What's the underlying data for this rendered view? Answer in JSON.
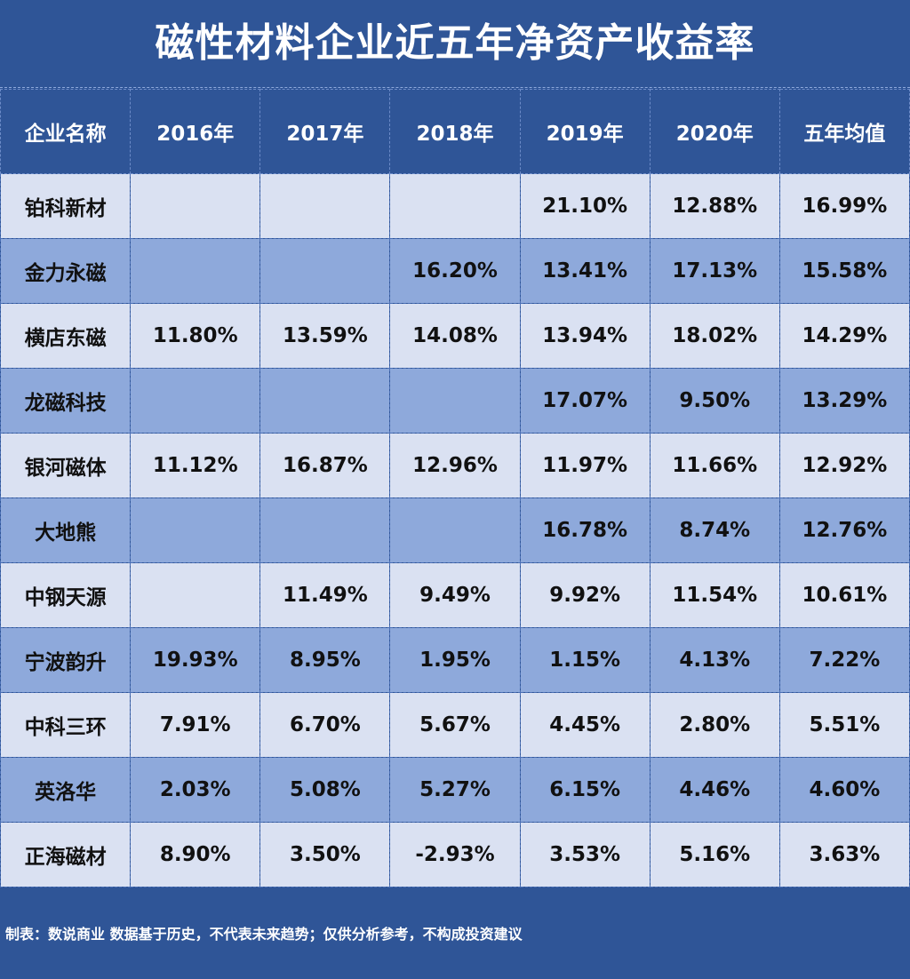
{
  "title": "磁性材料企业近五年净资产收益率",
  "footer": "制表：数说商业 数据基于历史，不代表未来趋势；仅供分析参考，不构成投资建议",
  "colors": {
    "header_bg": "#2F5597",
    "row_light": "#DAE1F2",
    "row_dark": "#8EA9DB",
    "text_light": "#FFFFFF",
    "text_dark": "#111111"
  },
  "chart_data": {
    "type": "table",
    "title": "磁性材料企业近五年净资产收益率",
    "columns": [
      "企业名称",
      "2016年",
      "2017年",
      "2018年",
      "2019年",
      "2020年",
      "五年均值"
    ],
    "rows": [
      [
        "铂科新材",
        "",
        "",
        "",
        "21.10%",
        "12.88%",
        "16.99%"
      ],
      [
        "金力永磁",
        "",
        "",
        "16.20%",
        "13.41%",
        "17.13%",
        "15.58%"
      ],
      [
        "横店东磁",
        "11.80%",
        "13.59%",
        "14.08%",
        "13.94%",
        "18.02%",
        "14.29%"
      ],
      [
        "龙磁科技",
        "",
        "",
        "",
        "17.07%",
        "9.50%",
        "13.29%"
      ],
      [
        "银河磁体",
        "11.12%",
        "16.87%",
        "12.96%",
        "11.97%",
        "11.66%",
        "12.92%"
      ],
      [
        "大地熊",
        "",
        "",
        "",
        "16.78%",
        "8.74%",
        "12.76%"
      ],
      [
        "中钢天源",
        "",
        "11.49%",
        "9.49%",
        "9.92%",
        "11.54%",
        "10.61%"
      ],
      [
        "宁波韵升",
        "19.93%",
        "8.95%",
        "1.95%",
        "1.15%",
        "4.13%",
        "7.22%"
      ],
      [
        "中科三环",
        "7.91%",
        "6.70%",
        "5.67%",
        "4.45%",
        "2.80%",
        "5.51%"
      ],
      [
        "英洛华",
        "2.03%",
        "5.08%",
        "5.27%",
        "6.15%",
        "4.46%",
        "4.60%"
      ],
      [
        "正海磁材",
        "8.90%",
        "3.50%",
        "-2.93%",
        "3.53%",
        "5.16%",
        "3.63%"
      ]
    ]
  }
}
